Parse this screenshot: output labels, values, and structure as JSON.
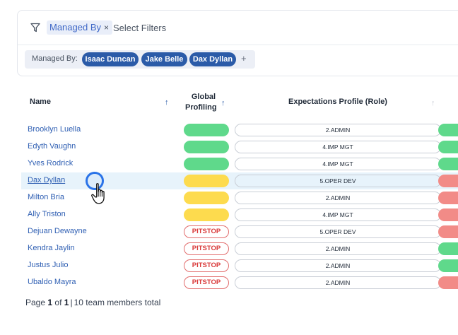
{
  "filters": {
    "top_chip_label": "Managed By",
    "top_chip_remove": "×",
    "select_placeholder": "Select Filters",
    "active_label": "Managed By:",
    "active_values": [
      "Isaac Duncan",
      "Jake Belle",
      "Dax Dyllan"
    ],
    "add_symbol": "+"
  },
  "table": {
    "headers": {
      "name": "Name",
      "global_profiling_line1": "Global",
      "global_profiling_line2": "Profiling",
      "expectations": "Expectations Profile (Role)",
      "sort_arrow": "↑"
    },
    "rows": [
      {
        "name": "Brooklyn Luella",
        "profiling": "green",
        "profiling_label": "",
        "role": "2.ADMIN",
        "status": "green"
      },
      {
        "name": "Edyth Vaughn",
        "profiling": "green",
        "profiling_label": "",
        "role": "4.IMP MGT",
        "status": "green"
      },
      {
        "name": "Yves Rodrick",
        "profiling": "green",
        "profiling_label": "",
        "role": "4.IMP MGT",
        "status": "green"
      },
      {
        "name": "Dax Dyllan",
        "profiling": "yellow",
        "profiling_label": "",
        "role": "5.OPER DEV",
        "status": "red",
        "highlighted": true
      },
      {
        "name": "Milton Bria",
        "profiling": "yellow",
        "profiling_label": "",
        "role": "2.ADMIN",
        "status": "red"
      },
      {
        "name": "Ally Triston",
        "profiling": "yellow",
        "profiling_label": "",
        "role": "4.IMP MGT",
        "status": "red"
      },
      {
        "name": "Dejuan Dewayne",
        "profiling": "pitstop",
        "profiling_label": "PITSTOP",
        "role": "5.OPER DEV",
        "status": "red"
      },
      {
        "name": "Kendra Jaylin",
        "profiling": "pitstop",
        "profiling_label": "PITSTOP",
        "role": "2.ADMIN",
        "status": "green"
      },
      {
        "name": "Justus Julio",
        "profiling": "pitstop",
        "profiling_label": "PITSTOP",
        "role": "2.ADMIN",
        "status": "green"
      },
      {
        "name": "Ubaldo Mayra",
        "profiling": "pitstop",
        "profiling_label": "PITSTOP",
        "role": "2.ADMIN",
        "status": "red"
      }
    ]
  },
  "footer": {
    "page_word": "Page",
    "page_current": "1",
    "of_word": "of",
    "page_total": "1",
    "separator": "|",
    "summary": "10 team members total"
  },
  "colors": {
    "green": "#5fd98b",
    "yellow": "#fddb4e",
    "red": "#f28b87",
    "link": "#2f5fb3",
    "pill": "#2b5ba8"
  }
}
